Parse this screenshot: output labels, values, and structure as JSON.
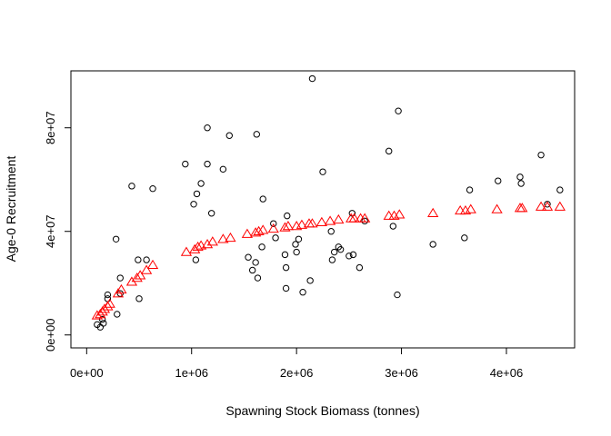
{
  "chart_data": {
    "type": "scatter",
    "title": "",
    "xlabel": "Spawning Stock Biomass (tonnes)",
    "ylabel": "Age-0 Recruitment",
    "xlim": [
      -150000,
      4650000
    ],
    "ylim": [
      -5000000,
      102000000
    ],
    "grid": false,
    "x_ticks": [
      {
        "value": 0,
        "label": "0e+00"
      },
      {
        "value": 1000000,
        "label": "1e+06"
      },
      {
        "value": 2000000,
        "label": "2e+06"
      },
      {
        "value": 3000000,
        "label": "3e+06"
      },
      {
        "value": 4000000,
        "label": "4e+06"
      }
    ],
    "y_ticks": [
      {
        "value": 0,
        "label": "0e+00"
      },
      {
        "value": 40000000,
        "label": "4e+07"
      },
      {
        "value": 80000000,
        "label": "8e+07"
      }
    ],
    "colors": {
      "observed": "#000000",
      "predicted": "#ff0000"
    },
    "series": [
      {
        "marker": "circle",
        "color": "#000000",
        "points": [
          [
            100000,
            4000000
          ],
          [
            130000,
            3000000
          ],
          [
            150000,
            6000000
          ],
          [
            160000,
            4500000
          ],
          [
            200000,
            14000000
          ],
          [
            200000,
            15500000
          ],
          [
            280000,
            37000000
          ],
          [
            290000,
            8000000
          ],
          [
            320000,
            16000000
          ],
          [
            320000,
            22000000
          ],
          [
            430000,
            57500000
          ],
          [
            490000,
            29000000
          ],
          [
            500000,
            14000000
          ],
          [
            570000,
            29000000
          ],
          [
            630000,
            56500000
          ],
          [
            940000,
            66000000
          ],
          [
            1020000,
            50500000
          ],
          [
            1040000,
            29000000
          ],
          [
            1050000,
            54500000
          ],
          [
            1090000,
            58500000
          ],
          [
            1150000,
            80000000
          ],
          [
            1150000,
            66000000
          ],
          [
            1190000,
            47000000
          ],
          [
            1300000,
            64000000
          ],
          [
            1360000,
            77000000
          ],
          [
            1540000,
            30000000
          ],
          [
            1580000,
            25000000
          ],
          [
            1610000,
            28000000
          ],
          [
            1620000,
            77500000
          ],
          [
            1630000,
            22000000
          ],
          [
            1670000,
            34000000
          ],
          [
            1680000,
            52500000
          ],
          [
            1780000,
            43000000
          ],
          [
            1800000,
            37500000
          ],
          [
            1890000,
            31000000
          ],
          [
            1900000,
            18000000
          ],
          [
            1900000,
            26000000
          ],
          [
            1910000,
            46000000
          ],
          [
            1990000,
            35000000
          ],
          [
            2000000,
            32000000
          ],
          [
            2020000,
            37000000
          ],
          [
            2060000,
            16500000
          ],
          [
            2130000,
            21000000
          ],
          [
            2150000,
            99000000
          ],
          [
            2250000,
            63000000
          ],
          [
            2330000,
            40000000
          ],
          [
            2340000,
            29000000
          ],
          [
            2360000,
            32000000
          ],
          [
            2400000,
            34000000
          ],
          [
            2420000,
            33000000
          ],
          [
            2500000,
            30500000
          ],
          [
            2530000,
            47000000
          ],
          [
            2540000,
            31000000
          ],
          [
            2600000,
            26000000
          ],
          [
            2650000,
            44000000
          ],
          [
            2880000,
            71000000
          ],
          [
            2920000,
            42000000
          ],
          [
            2960000,
            15500000
          ],
          [
            2970000,
            86500000
          ],
          [
            3300000,
            35000000
          ],
          [
            3600000,
            37500000
          ],
          [
            3650000,
            56000000
          ],
          [
            3920000,
            59500000
          ],
          [
            4130000,
            61000000
          ],
          [
            4140000,
            58500000
          ],
          [
            4330000,
            69500000
          ],
          [
            4390000,
            50500000
          ],
          [
            4510000,
            56000000
          ]
        ]
      },
      {
        "marker": "triangle",
        "color": "#ff0000",
        "points": [
          [
            100000,
            7500000
          ],
          [
            130000,
            8000000
          ],
          [
            150000,
            9000000
          ],
          [
            170000,
            10000000
          ],
          [
            200000,
            11000000
          ],
          [
            220000,
            12000000
          ],
          [
            300000,
            16000000
          ],
          [
            330000,
            17500000
          ],
          [
            430000,
            20500000
          ],
          [
            480000,
            22000000
          ],
          [
            510000,
            23000000
          ],
          [
            570000,
            25000000
          ],
          [
            630000,
            27000000
          ],
          [
            950000,
            32000000
          ],
          [
            1030000,
            33000000
          ],
          [
            1060000,
            34000000
          ],
          [
            1090000,
            34500000
          ],
          [
            1150000,
            35000000
          ],
          [
            1200000,
            36000000
          ],
          [
            1300000,
            37000000
          ],
          [
            1370000,
            37500000
          ],
          [
            1530000,
            39000000
          ],
          [
            1610000,
            39500000
          ],
          [
            1640000,
            40000000
          ],
          [
            1680000,
            40500000
          ],
          [
            1780000,
            41000000
          ],
          [
            1890000,
            41500000
          ],
          [
            1920000,
            42000000
          ],
          [
            2000000,
            42000000
          ],
          [
            2050000,
            42500000
          ],
          [
            2120000,
            43000000
          ],
          [
            2150000,
            43000000
          ],
          [
            2240000,
            43500000
          ],
          [
            2320000,
            44000000
          ],
          [
            2400000,
            44500000
          ],
          [
            2520000,
            45000000
          ],
          [
            2550000,
            45000000
          ],
          [
            2610000,
            45000000
          ],
          [
            2650000,
            45000000
          ],
          [
            2880000,
            46000000
          ],
          [
            2930000,
            46000000
          ],
          [
            2980000,
            46500000
          ],
          [
            3300000,
            47000000
          ],
          [
            3560000,
            48000000
          ],
          [
            3610000,
            48000000
          ],
          [
            3660000,
            48500000
          ],
          [
            3910000,
            48500000
          ],
          [
            4130000,
            49000000
          ],
          [
            4150000,
            49000000
          ],
          [
            4330000,
            49500000
          ],
          [
            4390000,
            49500000
          ],
          [
            4510000,
            49500000
          ]
        ]
      }
    ]
  }
}
